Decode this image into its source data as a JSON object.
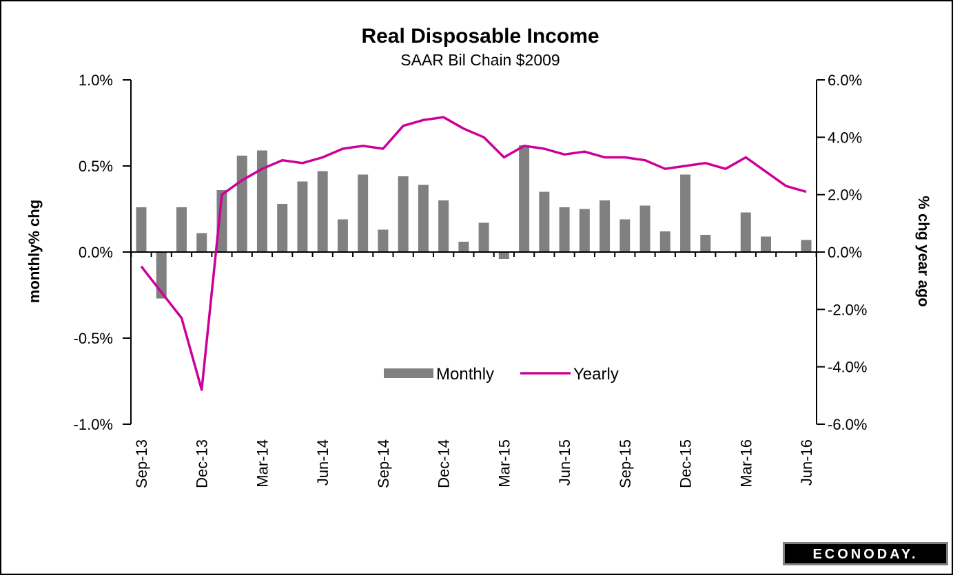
{
  "chart_data": {
    "type": "bar",
    "title": "Real Disposable  Income",
    "subtitle": "SAAR Bil Chain $2009",
    "ylabel_left": "monthly% chg",
    "ylabel_right": "% chg year ago",
    "ylim_left": [
      -1.0,
      1.0
    ],
    "ylim_right": [
      -6.0,
      6.0
    ],
    "left_ticks": [
      "1.0%",
      "0.5%",
      "0.0%",
      "-0.5%",
      "-1.0%"
    ],
    "right_ticks": [
      "6.0%",
      "4.0%",
      "2.0%",
      "0.0%",
      "-2.0%",
      "-4.0%",
      "-6.0%"
    ],
    "x_tick_labels": [
      "Sep-13",
      "Dec-13",
      "Mar-14",
      "Jun-14",
      "Sep-14",
      "Dec-14",
      "Mar-15",
      "Jun-15",
      "Sep-15",
      "Dec-15",
      "Mar-16",
      "Jun-16"
    ],
    "categories": [
      "Sep-13",
      "Oct-13",
      "Nov-13",
      "Dec-13",
      "Jan-14",
      "Feb-14",
      "Mar-14",
      "Apr-14",
      "May-14",
      "Jun-14",
      "Jul-14",
      "Aug-14",
      "Sep-14",
      "Oct-14",
      "Nov-14",
      "Dec-14",
      "Jan-15",
      "Feb-15",
      "Mar-15",
      "Apr-15",
      "May-15",
      "Jun-15",
      "Jul-15",
      "Aug-15",
      "Sep-15",
      "Oct-15",
      "Nov-15",
      "Dec-15",
      "Jan-16",
      "Feb-16",
      "Mar-16",
      "Apr-16",
      "May-16",
      "Jun-16"
    ],
    "series": [
      {
        "name": "Monthly",
        "axis": "left",
        "type": "bar",
        "color": "#808080",
        "values": [
          0.26,
          -0.27,
          0.26,
          0.11,
          0.36,
          0.56,
          0.59,
          0.28,
          0.41,
          0.47,
          0.19,
          0.45,
          0.13,
          0.44,
          0.39,
          0.3,
          0.06,
          0.17,
          -0.04,
          0.62,
          0.35,
          0.26,
          0.25,
          0.3,
          0.19,
          0.27,
          0.12,
          0.45,
          0.1,
          0.0,
          0.23,
          0.09,
          0.0,
          0.07
        ]
      },
      {
        "name": "Yearly",
        "axis": "right",
        "type": "line",
        "color": "#cc0099",
        "values": [
          -0.5,
          -1.4,
          -2.3,
          -4.8,
          2.0,
          2.5,
          2.9,
          3.2,
          3.1,
          3.3,
          3.6,
          3.7,
          3.6,
          4.4,
          4.6,
          4.7,
          4.3,
          4.0,
          3.3,
          3.7,
          3.6,
          3.4,
          3.5,
          3.3,
          3.3,
          3.2,
          2.9,
          3.0,
          3.1,
          2.9,
          3.3,
          2.8,
          2.3,
          2.1
        ]
      }
    ],
    "legend": "center",
    "grid": false
  },
  "logo": {
    "text": "ECONODAY."
  }
}
